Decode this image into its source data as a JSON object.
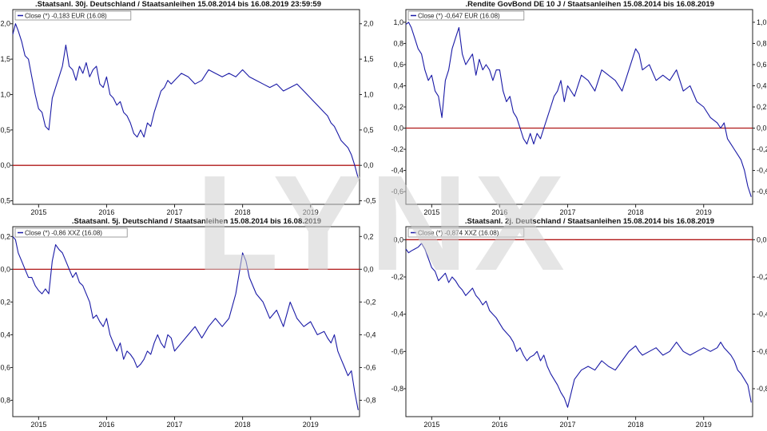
{
  "watermark": "LYNX",
  "colors": {
    "series": "#1a1aa6",
    "zero_line": "#b01818",
    "frame": "#222222",
    "watermark": "#d0d0d0"
  },
  "chart_data": [
    {
      "type": "line",
      "title": ".Staatsanl. 30j. Deutschland / Staatsanleihen 15.08.2014 bis 16.08.2019 23:59:59",
      "legend": "Close (*) -0,183 EUR (16.08)",
      "legend_position": "top-left",
      "xlabel": "",
      "ylabel": "",
      "xlim": [
        2014.62,
        2019.72
      ],
      "ylim": [
        -0.55,
        2.2
      ],
      "yticks": [
        -0.5,
        0.0,
        0.5,
        1.0,
        1.5,
        2.0
      ],
      "yticklabels": [
        "-0,5",
        "0,0",
        "0,5",
        "1,0",
        "1,5",
        "2,0"
      ],
      "xticks": [
        2015,
        2016,
        2017,
        2018,
        2019
      ],
      "xticklabels": [
        "2015",
        "2016",
        "2017",
        "2018",
        "2019"
      ],
      "reference_line": 0,
      "grid": false,
      "series": [
        {
          "x": [
            2014.62,
            2014.66,
            2014.7,
            2014.75,
            2014.8,
            2014.85,
            2014.9,
            2014.95,
            2015.0,
            2015.05,
            2015.1,
            2015.15,
            2015.2,
            2015.25,
            2015.3,
            2015.35,
            2015.4,
            2015.45,
            2015.5,
            2015.55,
            2015.6,
            2015.65,
            2015.7,
            2015.75,
            2015.8,
            2015.85,
            2015.9,
            2015.95,
            2016.0,
            2016.05,
            2016.1,
            2016.15,
            2016.2,
            2016.25,
            2016.3,
            2016.35,
            2016.4,
            2016.45,
            2016.5,
            2016.55,
            2016.6,
            2016.65,
            2016.7,
            2016.75,
            2016.8,
            2016.85,
            2016.9,
            2016.95,
            2017.0,
            2017.1,
            2017.2,
            2017.3,
            2017.4,
            2017.5,
            2017.6,
            2017.7,
            2017.8,
            2017.9,
            2018.0,
            2018.05,
            2018.1,
            2018.2,
            2018.3,
            2018.4,
            2018.5,
            2018.6,
            2018.7,
            2018.8,
            2018.9,
            2019.0,
            2019.1,
            2019.2,
            2019.25,
            2019.3,
            2019.35,
            2019.4,
            2019.45,
            2019.5,
            2019.55,
            2019.6,
            2019.65,
            2019.7
          ],
          "y": [
            1.85,
            2.0,
            1.9,
            1.75,
            1.55,
            1.5,
            1.25,
            1.0,
            0.8,
            0.75,
            0.55,
            0.5,
            0.95,
            1.1,
            1.25,
            1.4,
            1.7,
            1.4,
            1.35,
            1.2,
            1.4,
            1.3,
            1.45,
            1.25,
            1.35,
            1.4,
            1.15,
            1.1,
            1.25,
            1.0,
            0.95,
            0.85,
            0.9,
            0.75,
            0.7,
            0.6,
            0.45,
            0.4,
            0.5,
            0.4,
            0.6,
            0.55,
            0.75,
            0.9,
            1.05,
            1.1,
            1.2,
            1.15,
            1.2,
            1.3,
            1.25,
            1.15,
            1.2,
            1.35,
            1.3,
            1.25,
            1.3,
            1.25,
            1.35,
            1.3,
            1.25,
            1.2,
            1.15,
            1.1,
            1.15,
            1.05,
            1.1,
            1.15,
            1.05,
            0.95,
            0.85,
            0.75,
            0.7,
            0.6,
            0.55,
            0.45,
            0.35,
            0.3,
            0.25,
            0.15,
            0.0,
            -0.18
          ]
        }
      ]
    },
    {
      "type": "line",
      "title": ".Rendite GovBond DE 10 J / Staatsanleihen 15.08.2014 bis 16.08.2019",
      "legend": "Close (*) -0,647 EUR (16.08)",
      "legend_position": "top-left",
      "xlabel": "",
      "ylabel": "",
      "xlim": [
        2014.62,
        2019.72
      ],
      "ylim": [
        -0.72,
        1.12
      ],
      "yticks": [
        -0.6,
        -0.4,
        -0.2,
        0.0,
        0.2,
        0.4,
        0.6,
        0.8,
        1.0
      ],
      "yticklabels": [
        "-0,6",
        "-0,4",
        "-0,2",
        "0,0",
        "0,2",
        "0,4",
        "0,6",
        "0,8",
        "1,0"
      ],
      "xticks": [
        2015,
        2016,
        2017,
        2018,
        2019
      ],
      "xticklabels": [
        "2015",
        "2016",
        "2017",
        "2018",
        "2019"
      ],
      "reference_line": 0,
      "grid": false,
      "series": [
        {
          "x": [
            2014.62,
            2014.66,
            2014.7,
            2014.75,
            2014.8,
            2014.85,
            2014.9,
            2014.95,
            2015.0,
            2015.05,
            2015.1,
            2015.15,
            2015.2,
            2015.25,
            2015.3,
            2015.35,
            2015.4,
            2015.45,
            2015.5,
            2015.55,
            2015.6,
            2015.65,
            2015.7,
            2015.75,
            2015.8,
            2015.85,
            2015.9,
            2015.95,
            2016.0,
            2016.05,
            2016.1,
            2016.15,
            2016.2,
            2016.25,
            2016.3,
            2016.35,
            2016.4,
            2016.45,
            2016.5,
            2016.55,
            2016.6,
            2016.65,
            2016.7,
            2016.75,
            2016.8,
            2016.85,
            2016.9,
            2016.95,
            2017.0,
            2017.1,
            2017.2,
            2017.3,
            2017.4,
            2017.5,
            2017.6,
            2017.7,
            2017.8,
            2017.9,
            2018.0,
            2018.05,
            2018.1,
            2018.2,
            2018.3,
            2018.4,
            2018.5,
            2018.6,
            2018.7,
            2018.8,
            2018.9,
            2019.0,
            2019.1,
            2019.2,
            2019.25,
            2019.3,
            2019.35,
            2019.4,
            2019.45,
            2019.5,
            2019.55,
            2019.6,
            2019.65,
            2019.7
          ],
          "y": [
            0.98,
            1.0,
            0.95,
            0.85,
            0.75,
            0.7,
            0.55,
            0.45,
            0.5,
            0.35,
            0.3,
            0.1,
            0.45,
            0.55,
            0.75,
            0.85,
            0.95,
            0.7,
            0.6,
            0.65,
            0.7,
            0.5,
            0.65,
            0.55,
            0.6,
            0.55,
            0.45,
            0.55,
            0.55,
            0.35,
            0.25,
            0.3,
            0.15,
            0.1,
            0.0,
            -0.1,
            -0.15,
            -0.05,
            -0.15,
            -0.05,
            -0.1,
            0.0,
            0.1,
            0.2,
            0.3,
            0.35,
            0.45,
            0.25,
            0.4,
            0.3,
            0.5,
            0.45,
            0.35,
            0.55,
            0.5,
            0.45,
            0.35,
            0.55,
            0.75,
            0.7,
            0.55,
            0.6,
            0.45,
            0.5,
            0.45,
            0.55,
            0.35,
            0.4,
            0.25,
            0.2,
            0.1,
            0.05,
            0.0,
            0.05,
            -0.1,
            -0.15,
            -0.2,
            -0.25,
            -0.3,
            -0.4,
            -0.55,
            -0.65
          ]
        }
      ]
    },
    {
      "type": "line",
      "title": ".Staatsanl. 5j. Deutschland / Staatsanleihen 15.08.2014 bis 16.08.2019",
      "legend": "Close (*) -0,86 XXZ (16.08)",
      "legend_position": "top-left",
      "xlabel": "",
      "ylabel": "",
      "xlim": [
        2014.62,
        2019.72
      ],
      "ylim": [
        -0.9,
        0.26
      ],
      "yticks": [
        -0.8,
        -0.6,
        -0.4,
        -0.2,
        0.0,
        0.2
      ],
      "yticklabels": [
        "-0,8",
        "-0,6",
        "-0,4",
        "-0,2",
        "0,0",
        "0,2"
      ],
      "xticks": [
        2015,
        2016,
        2017,
        2018,
        2019
      ],
      "xticklabels": [
        "2015",
        "2016",
        "2017",
        "2018",
        "2019"
      ],
      "reference_line": 0,
      "grid": false,
      "series": [
        {
          "x": [
            2014.62,
            2014.66,
            2014.7,
            2014.75,
            2014.8,
            2014.85,
            2014.9,
            2014.95,
            2015.0,
            2015.05,
            2015.1,
            2015.15,
            2015.2,
            2015.25,
            2015.3,
            2015.35,
            2015.4,
            2015.45,
            2015.5,
            2015.55,
            2015.6,
            2015.65,
            2015.7,
            2015.75,
            2015.8,
            2015.85,
            2015.9,
            2015.95,
            2016.0,
            2016.05,
            2016.1,
            2016.15,
            2016.2,
            2016.25,
            2016.3,
            2016.35,
            2016.4,
            2016.45,
            2016.5,
            2016.55,
            2016.6,
            2016.65,
            2016.7,
            2016.75,
            2016.8,
            2016.85,
            2016.9,
            2016.95,
            2017.0,
            2017.1,
            2017.2,
            2017.3,
            2017.4,
            2017.5,
            2017.6,
            2017.7,
            2017.8,
            2017.9,
            2018.0,
            2018.05,
            2018.1,
            2018.2,
            2018.3,
            2018.4,
            2018.5,
            2018.6,
            2018.7,
            2018.8,
            2018.9,
            2019.0,
            2019.1,
            2019.2,
            2019.25,
            2019.3,
            2019.35,
            2019.4,
            2019.45,
            2019.5,
            2019.55,
            2019.6,
            2019.65,
            2019.7
          ],
          "y": [
            0.2,
            0.18,
            0.1,
            0.05,
            0.0,
            -0.05,
            -0.05,
            -0.1,
            -0.13,
            -0.15,
            -0.12,
            -0.15,
            0.05,
            0.15,
            0.12,
            0.1,
            0.05,
            0.0,
            -0.05,
            -0.02,
            -0.08,
            -0.1,
            -0.15,
            -0.2,
            -0.3,
            -0.28,
            -0.32,
            -0.35,
            -0.3,
            -0.4,
            -0.45,
            -0.5,
            -0.45,
            -0.55,
            -0.5,
            -0.52,
            -0.55,
            -0.6,
            -0.58,
            -0.55,
            -0.5,
            -0.52,
            -0.45,
            -0.4,
            -0.45,
            -0.48,
            -0.4,
            -0.42,
            -0.5,
            -0.45,
            -0.4,
            -0.35,
            -0.42,
            -0.35,
            -0.3,
            -0.35,
            -0.3,
            -0.15,
            0.1,
            0.05,
            -0.05,
            -0.15,
            -0.2,
            -0.3,
            -0.25,
            -0.35,
            -0.2,
            -0.3,
            -0.35,
            -0.32,
            -0.4,
            -0.38,
            -0.42,
            -0.45,
            -0.4,
            -0.5,
            -0.55,
            -0.6,
            -0.65,
            -0.62,
            -0.75,
            -0.86
          ]
        }
      ]
    },
    {
      "type": "line",
      "title": ".Staatsanl. 2j. Deutschland / Staatsanleihen 15.08.2014 bis 16.08.2019",
      "legend": "Close (*) -0,874 XXZ (16.08)",
      "legend_position": "top-left",
      "xlabel": "",
      "ylabel": "",
      "xlim": [
        2014.62,
        2019.72
      ],
      "ylim": [
        -0.95,
        0.07
      ],
      "yticks": [
        -0.8,
        -0.6,
        -0.4,
        -0.2,
        0.0
      ],
      "yticklabels": [
        "-0,8",
        "-0,6",
        "-0,4",
        "-0,2",
        "0,0"
      ],
      "xticks": [
        2015,
        2016,
        2017,
        2018,
        2019
      ],
      "xticklabels": [
        "2015",
        "2016",
        "2017",
        "2018",
        "2019"
      ],
      "reference_line": 0,
      "grid": false,
      "series": [
        {
          "x": [
            2014.62,
            2014.66,
            2014.7,
            2014.75,
            2014.8,
            2014.85,
            2014.9,
            2014.95,
            2015.0,
            2015.05,
            2015.1,
            2015.15,
            2015.2,
            2015.25,
            2015.3,
            2015.35,
            2015.4,
            2015.45,
            2015.5,
            2015.55,
            2015.6,
            2015.65,
            2015.7,
            2015.75,
            2015.8,
            2015.85,
            2015.9,
            2015.95,
            2016.0,
            2016.05,
            2016.1,
            2016.15,
            2016.2,
            2016.25,
            2016.3,
            2016.35,
            2016.4,
            2016.45,
            2016.5,
            2016.55,
            2016.6,
            2016.65,
            2016.7,
            2016.75,
            2016.8,
            2016.85,
            2016.9,
            2016.95,
            2017.0,
            2017.1,
            2017.2,
            2017.3,
            2017.4,
            2017.5,
            2017.6,
            2017.7,
            2017.8,
            2017.9,
            2018.0,
            2018.05,
            2018.1,
            2018.2,
            2018.3,
            2018.4,
            2018.5,
            2018.6,
            2018.7,
            2018.8,
            2018.9,
            2019.0,
            2019.1,
            2019.2,
            2019.25,
            2019.3,
            2019.35,
            2019.4,
            2019.45,
            2019.5,
            2019.55,
            2019.6,
            2019.65,
            2019.7
          ],
          "y": [
            -0.05,
            -0.07,
            -0.06,
            -0.05,
            -0.04,
            -0.02,
            -0.05,
            -0.1,
            -0.15,
            -0.17,
            -0.22,
            -0.2,
            -0.18,
            -0.23,
            -0.2,
            -0.22,
            -0.25,
            -0.27,
            -0.3,
            -0.28,
            -0.26,
            -0.3,
            -0.32,
            -0.35,
            -0.33,
            -0.38,
            -0.4,
            -0.42,
            -0.45,
            -0.48,
            -0.5,
            -0.52,
            -0.55,
            -0.6,
            -0.58,
            -0.62,
            -0.65,
            -0.63,
            -0.62,
            -0.6,
            -0.65,
            -0.62,
            -0.68,
            -0.72,
            -0.75,
            -0.78,
            -0.82,
            -0.85,
            -0.9,
            -0.75,
            -0.7,
            -0.68,
            -0.7,
            -0.65,
            -0.68,
            -0.7,
            -0.65,
            -0.6,
            -0.57,
            -0.6,
            -0.62,
            -0.6,
            -0.58,
            -0.62,
            -0.6,
            -0.55,
            -0.6,
            -0.62,
            -0.6,
            -0.58,
            -0.6,
            -0.58,
            -0.55,
            -0.58,
            -0.6,
            -0.62,
            -0.65,
            -0.7,
            -0.72,
            -0.75,
            -0.78,
            -0.874
          ]
        }
      ]
    }
  ]
}
